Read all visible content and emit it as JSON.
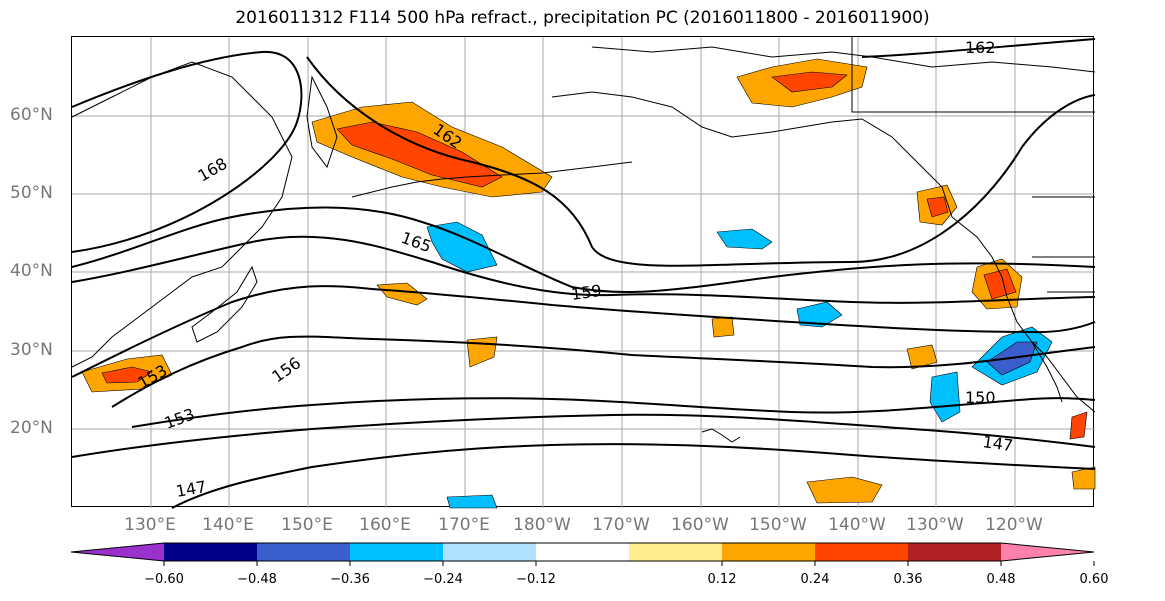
{
  "title": "2016011312 F114 500 hPa refract., precipitation PC (2016011800 - 2016011900)",
  "lat_labels": [
    "60°N",
    "50°N",
    "40°N",
    "30°N",
    "20°N"
  ],
  "lon_labels": [
    "130°E",
    "140°E",
    "150°E",
    "160°E",
    "170°E",
    "180°W",
    "170°W",
    "160°W",
    "150°W",
    "140°W",
    "130°W",
    "120°W"
  ],
  "contour_labels": [
    "162",
    "162",
    "168",
    "165",
    "159",
    "156",
    "153",
    "153",
    "150",
    "147",
    "147"
  ],
  "colorbar": {
    "colors": [
      "#9932cc",
      "#00008b",
      "#3a5fcd",
      "#00bfff",
      "#b0e2ff",
      "#ffffff",
      "#ffec8b",
      "#ffa500",
      "#ff4500",
      "#b22222",
      "#ff82ab"
    ],
    "ticks": [
      "−0.60",
      "−0.48",
      "−0.36",
      "−0.24",
      "−0.12",
      "0.12",
      "0.24",
      "0.36",
      "0.48",
      "0.60"
    ]
  }
}
